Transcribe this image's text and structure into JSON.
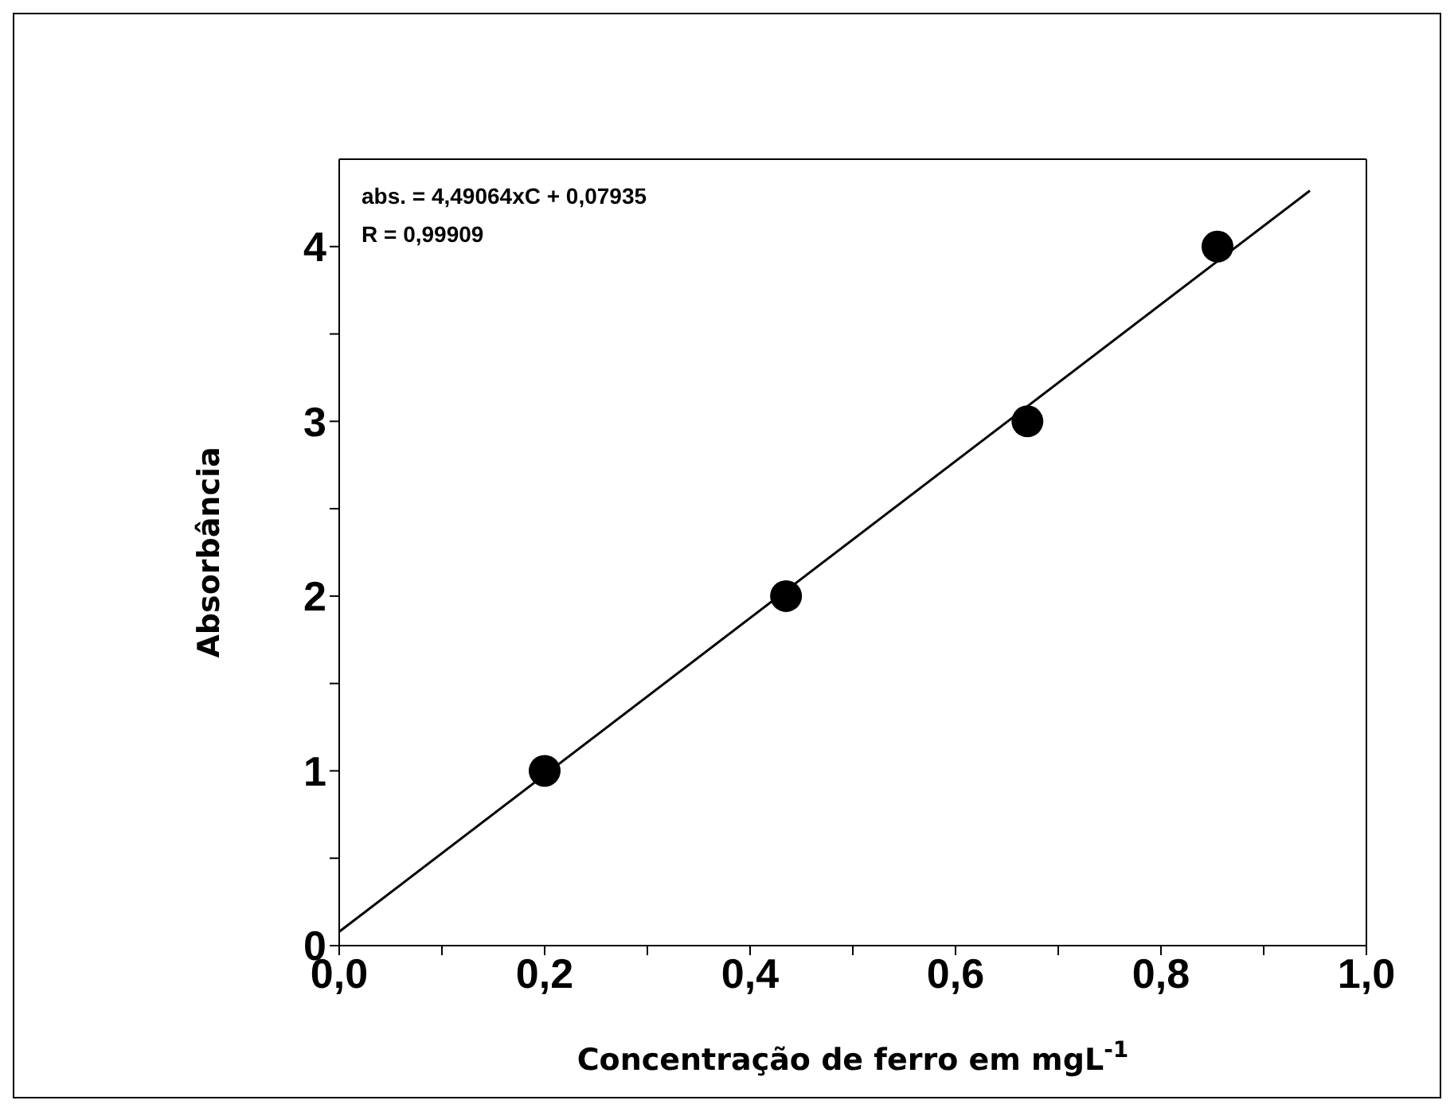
{
  "chart_data": {
    "type": "scatter",
    "xlabel": "Concentração de ferro em mgL$^{-1}$",
    "ylabel": "Absorbância",
    "annotations": [
      "abs. = 4,49064xC + 0,07935",
      "R = 0,99909"
    ],
    "xlim": [
      0,
      1
    ],
    "xticks": [
      {
        "value": 0,
        "label": "0,0"
      },
      {
        "value": 0.1,
        "label": null
      },
      {
        "value": 0.2,
        "label": "0,2"
      },
      {
        "value": 0.3,
        "label": null
      },
      {
        "value": 0.4,
        "label": "0,4"
      },
      {
        "value": 0.5,
        "label": null
      },
      {
        "value": 0.6,
        "label": "0,6"
      },
      {
        "value": 0.7,
        "label": null
      },
      {
        "value": 0.8,
        "label": "0,8"
      },
      {
        "value": 0.9,
        "label": null
      },
      {
        "value": 1,
        "label": "1,0"
      }
    ],
    "ylim": [
      0,
      4.5
    ],
    "yticks": [
      0,
      {
        "value": 0.5,
        "label": null
      },
      1,
      {
        "value": 1.5,
        "label": null
      },
      2,
      {
        "value": 2.5,
        "label": null
      },
      3,
      {
        "value": 3.5,
        "label": null
      },
      4
    ],
    "marker": "circle",
    "series": [
      {
        "color": "#000000",
        "x": [
          0.2,
          0.435,
          0.67,
          0.855
        ],
        "values": [
          1,
          2,
          3,
          4
        ]
      },
      {
        "type": "line",
        "color": "#000000",
        "marker": "none",
        "x": [
          0,
          0.945
        ],
        "values": [
          0.08,
          4.32
        ]
      }
    ]
  }
}
